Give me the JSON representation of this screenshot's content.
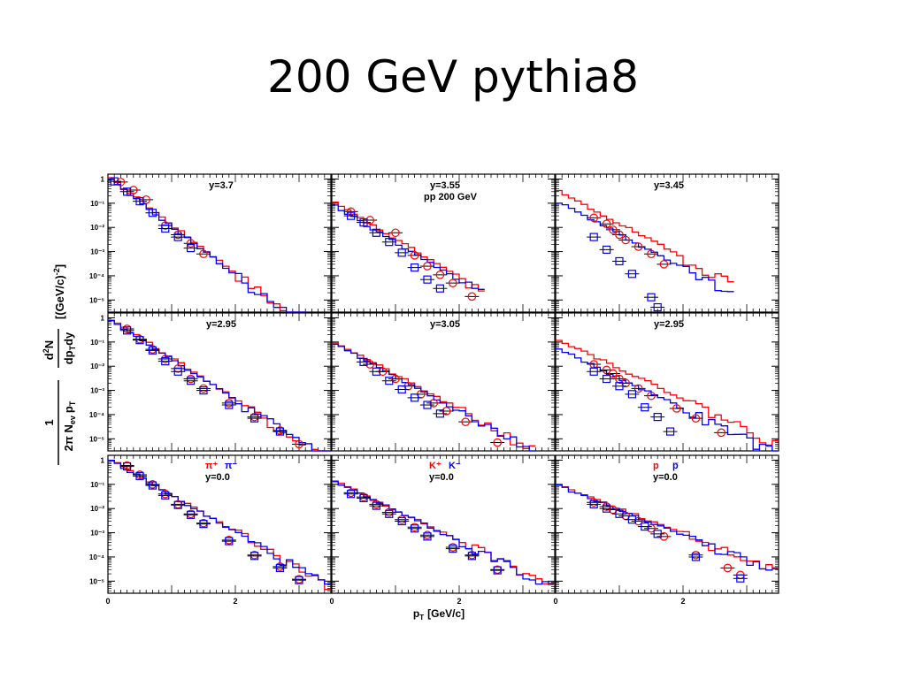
{
  "slide": {
    "title": "200 GeV pythia8"
  },
  "figure": {
    "ylabel_main": "dN",
    "ylabel_sup": "2",
    "ylabel_den": "dp",
    "ylabel_den_sub": "T",
    "ylabel_den_rest": "dy",
    "ylabel_unit": "[(GeV/c)",
    "ylabel_unit_sup": "-2",
    "ylabel_unit_end": "]",
    "ylabel_prefactor_num": "1",
    "ylabel_prefactor_den": "2π N",
    "ylabel_prefactor_den_sub": "ev",
    "ylabel_prefactor_pt": "p",
    "ylabel_prefactor_pt_sub": "T",
    "xlabel_main": "p",
    "xlabel_sub": "T",
    "xlabel_unit": "[GeV/c]",
    "x_ticks": [
      "0",
      "2"
    ],
    "y_ticks": [
      "1",
      "10⁻¹",
      "10⁻²",
      "10⁻³",
      "10⁻⁴",
      "10⁻⁵"
    ],
    "colors": {
      "red": "#ff0000",
      "blue": "#0000ff"
    }
  },
  "chart_data": [
    {
      "type": "line",
      "title": "y=3.7",
      "extra": "",
      "legend": [],
      "xlim": [
        0,
        3.5
      ],
      "ylim_log10": [
        -5.5,
        0.2
      ],
      "species_slope": 4.6,
      "red_norm": 1.3,
      "blue_norm": 1.1,
      "red_data": [
        [
          0.2,
          0.75
        ],
        [
          0.4,
          0.35
        ],
        [
          0.6,
          0.14
        ],
        [
          0.9,
          0.012
        ],
        [
          1.1,
          0.005
        ],
        [
          1.3,
          0.0022
        ],
        [
          1.5,
          0.0008
        ]
      ],
      "blue_data": [
        [
          0.1,
          0.8
        ],
        [
          0.3,
          0.3
        ],
        [
          0.5,
          0.12
        ],
        [
          0.7,
          0.04
        ],
        [
          0.9,
          0.009
        ],
        [
          1.1,
          0.004
        ],
        [
          1.3,
          0.0014
        ]
      ],
      "hist_end": 3.1
    },
    {
      "type": "line",
      "title": "y=3.55",
      "extra": "pp 200 GeV",
      "legend": [],
      "xlim": [
        0,
        3.5
      ],
      "ylim_log10": [
        -5.5,
        0.2
      ],
      "species_slope": 3.6,
      "red_norm": 0.12,
      "blue_norm": 0.09,
      "red_data": [
        [
          0.3,
          0.045
        ],
        [
          0.6,
          0.02
        ],
        [
          1.0,
          0.006
        ],
        [
          1.3,
          0.0007
        ],
        [
          1.5,
          0.00025
        ],
        [
          1.7,
          0.00011
        ],
        [
          1.9,
          5e-05
        ],
        [
          2.2,
          1.4e-05
        ]
      ],
      "blue_data": [
        [
          0.3,
          0.03
        ],
        [
          0.5,
          0.016
        ],
        [
          0.7,
          0.006
        ],
        [
          0.9,
          0.0025
        ],
        [
          1.1,
          0.0009
        ],
        [
          1.3,
          0.00022
        ],
        [
          1.5,
          7e-05
        ],
        [
          1.7,
          3e-05
        ]
      ],
      "hist_end": 2.4
    },
    {
      "type": "line",
      "title": "y=3.45",
      "extra": "",
      "legend": [],
      "xlim": [
        0,
        3.5
      ],
      "ylim_log10": [
        -5.5,
        0.2
      ],
      "species_slope": 3.2,
      "red_norm": 0.35,
      "blue_norm": 0.13,
      "red_data": [
        [
          0.6,
          0.025
        ],
        [
          0.8,
          0.014
        ],
        [
          0.9,
          0.008
        ],
        [
          1.0,
          0.005
        ],
        [
          1.1,
          0.003
        ],
        [
          1.3,
          0.0016
        ],
        [
          1.5,
          0.0008
        ],
        [
          1.7,
          0.0003
        ]
      ],
      "blue_data": [
        [
          0.6,
          0.004
        ],
        [
          0.8,
          0.0012
        ],
        [
          1.0,
          0.0004
        ],
        [
          1.2,
          0.00012
        ],
        [
          1.5,
          1.3e-05
        ],
        [
          1.6,
          5e-06
        ]
      ],
      "hist_end": 2.8
    },
    {
      "type": "line",
      "title": "y=2.95",
      "extra": "",
      "legend": [],
      "xlim": [
        0,
        3.5
      ],
      "ylim_log10": [
        -5.5,
        0.2
      ],
      "species_slope": 3.9,
      "red_norm": 1.1,
      "blue_norm": 1.0,
      "red_data": [
        [
          0.3,
          0.35
        ],
        [
          0.5,
          0.13
        ],
        [
          0.7,
          0.05
        ],
        [
          0.9,
          0.02
        ],
        [
          1.1,
          0.008
        ],
        [
          1.3,
          0.003
        ],
        [
          1.5,
          0.0012
        ],
        [
          1.9,
          0.0003
        ],
        [
          2.3,
          8e-05
        ],
        [
          2.7,
          2.2e-05
        ],
        [
          3.0,
          6e-06
        ]
      ],
      "blue_data": [
        [
          0.3,
          0.3
        ],
        [
          0.5,
          0.12
        ],
        [
          0.7,
          0.045
        ],
        [
          0.9,
          0.016
        ],
        [
          1.1,
          0.006
        ],
        [
          1.3,
          0.0025
        ],
        [
          1.5,
          0.001
        ],
        [
          1.9,
          0.00025
        ],
        [
          2.3,
          7e-05
        ],
        [
          2.7,
          2e-05
        ]
      ],
      "hist_end": 3.5
    },
    {
      "type": "line",
      "title": "y=3.05",
      "extra": "",
      "legend": [],
      "xlim": [
        0,
        3.5
      ],
      "ylim_log10": [
        -5.5,
        0.2
      ],
      "species_slope": 3.3,
      "red_norm": 0.12,
      "blue_norm": 0.1,
      "red_data": [
        [
          0.6,
          0.012
        ],
        [
          0.8,
          0.006
        ],
        [
          1.0,
          0.003
        ],
        [
          1.2,
          0.0015
        ],
        [
          1.4,
          0.0007
        ],
        [
          1.6,
          0.0003
        ],
        [
          1.8,
          0.00014
        ],
        [
          2.1,
          5e-05
        ],
        [
          2.6,
          7e-06
        ]
      ],
      "blue_data": [
        [
          0.5,
          0.015
        ],
        [
          0.7,
          0.006
        ],
        [
          0.9,
          0.0025
        ],
        [
          1.1,
          0.0011
        ],
        [
          1.3,
          0.0005
        ],
        [
          1.5,
          0.00025
        ],
        [
          1.7,
          0.00011
        ]
      ],
      "hist_end": 3.2
    },
    {
      "type": "line",
      "title": "y=2.95",
      "extra": "",
      "legend": [],
      "xlim": [
        0,
        3.5
      ],
      "ylim_log10": [
        -5.5,
        0.2
      ],
      "species_slope": 2.9,
      "red_norm": 0.15,
      "blue_norm": 0.06,
      "red_data": [
        [
          0.6,
          0.012
        ],
        [
          0.8,
          0.007
        ],
        [
          0.9,
          0.005
        ],
        [
          1.0,
          0.003
        ],
        [
          1.1,
          0.002
        ],
        [
          1.3,
          0.0012
        ],
        [
          1.5,
          0.0006
        ],
        [
          1.9,
          0.00018
        ],
        [
          2.2,
          7e-05
        ],
        [
          2.6,
          1.8e-05
        ]
      ],
      "blue_data": [
        [
          0.6,
          0.006
        ],
        [
          0.8,
          0.003
        ],
        [
          1.0,
          0.0015
        ],
        [
          1.2,
          0.0007
        ],
        [
          1.4,
          0.0002
        ],
        [
          1.6,
          8e-05
        ],
        [
          1.8,
          2e-05
        ]
      ],
      "hist_end": 3.5
    },
    {
      "type": "line",
      "title": "y=0.0",
      "extra": "",
      "legend": [
        {
          "text": "π⁺",
          "color": "#ff0000"
        },
        {
          "text": "π⁻",
          "color": "#0000ff"
        }
      ],
      "xlim": [
        0,
        3.5
      ],
      "ylim_log10": [
        -5.5,
        0.2
      ],
      "species_slope": 3.5,
      "red_norm": 1.2,
      "blue_norm": 1.15,
      "red_data": [
        [
          0.3,
          0.6
        ],
        [
          0.5,
          0.25
        ],
        [
          0.7,
          0.1
        ],
        [
          0.9,
          0.04
        ],
        [
          1.1,
          0.015
        ],
        [
          1.3,
          0.006
        ],
        [
          1.5,
          0.0025
        ],
        [
          1.9,
          0.0005
        ],
        [
          2.3,
          0.00012
        ],
        [
          2.7,
          4e-05
        ],
        [
          3.0,
          1.2e-05
        ]
      ],
      "blue_data": [
        [
          0.3,
          0.55
        ],
        [
          0.5,
          0.22
        ],
        [
          0.7,
          0.09
        ],
        [
          0.9,
          0.035
        ],
        [
          1.1,
          0.014
        ],
        [
          1.3,
          0.0055
        ],
        [
          1.5,
          0.0023
        ],
        [
          1.9,
          0.00045
        ],
        [
          2.3,
          0.00011
        ],
        [
          2.7,
          3.5e-05
        ],
        [
          3.0,
          1.1e-05
        ]
      ],
      "hist_end": 3.5
    },
    {
      "type": "line",
      "title": "y=0.0",
      "extra": "",
      "legend": [
        {
          "text": "K⁺",
          "color": "#ff0000"
        },
        {
          "text": "K⁻",
          "color": "#0000ff"
        }
      ],
      "xlim": [
        0,
        3.5
      ],
      "ylim_log10": [
        -5.5,
        0.2
      ],
      "species_slope": 2.9,
      "red_norm": 0.16,
      "blue_norm": 0.15,
      "red_data": [
        [
          0.3,
          0.045
        ],
        [
          0.5,
          0.03
        ],
        [
          0.7,
          0.015
        ],
        [
          0.9,
          0.007
        ],
        [
          1.1,
          0.0035
        ],
        [
          1.3,
          0.0017
        ],
        [
          1.5,
          0.0008
        ],
        [
          1.9,
          0.00025
        ],
        [
          2.2,
          0.00012
        ],
        [
          2.6,
          3e-05
        ]
      ],
      "blue_data": [
        [
          0.3,
          0.04
        ],
        [
          0.5,
          0.027
        ],
        [
          0.7,
          0.013
        ],
        [
          0.9,
          0.006
        ],
        [
          1.1,
          0.003
        ],
        [
          1.3,
          0.0015
        ],
        [
          1.5,
          0.0007
        ],
        [
          1.9,
          0.00022
        ],
        [
          2.2,
          0.00011
        ],
        [
          2.6,
          2.8e-05
        ]
      ],
      "hist_end": 3.5
    },
    {
      "type": "line",
      "title": "y=0.0",
      "extra": "",
      "legend": [
        {
          "text": "p",
          "color": "#ff0000"
        },
        {
          "text": "p̅",
          "color": "#0000ff"
        }
      ],
      "xlim": [
        0,
        3.5
      ],
      "ylim_log10": [
        -5.5,
        0.2
      ],
      "species_slope": 2.4,
      "red_norm": 0.11,
      "blue_norm": 0.1,
      "red_data": [
        [
          0.6,
          0.018
        ],
        [
          0.8,
          0.012
        ],
        [
          0.9,
          0.009
        ],
        [
          1.1,
          0.005
        ],
        [
          1.3,
          0.003
        ],
        [
          1.5,
          0.0015
        ],
        [
          1.7,
          0.0007
        ],
        [
          2.2,
          0.00012
        ],
        [
          2.7,
          3.5e-05
        ],
        [
          2.9,
          1.8e-05
        ]
      ],
      "blue_data": [
        [
          0.6,
          0.015
        ],
        [
          0.8,
          0.01
        ],
        [
          1.0,
          0.006
        ],
        [
          1.2,
          0.0035
        ],
        [
          1.4,
          0.0018
        ],
        [
          1.6,
          0.0009
        ],
        [
          2.2,
          0.0001
        ],
        [
          2.9,
          1.3e-05
        ]
      ],
      "hist_end": 3.5
    }
  ]
}
